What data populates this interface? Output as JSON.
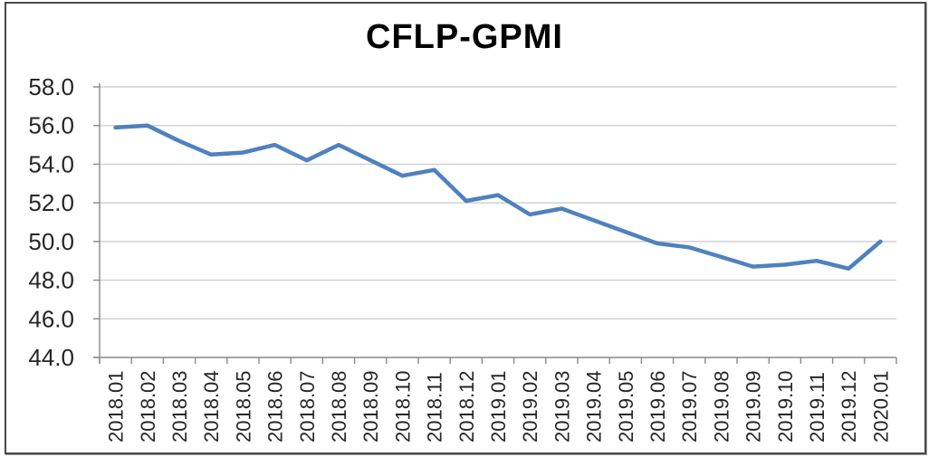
{
  "window": {
    "background": "#ffffff",
    "frame_border_color": "#4a4a4a"
  },
  "chart_data": {
    "type": "line",
    "title": "CFLP-GPMI",
    "categories": [
      "2018.01",
      "2018.02",
      "2018.03",
      "2018.04",
      "2018.05",
      "2018.06",
      "2018.07",
      "2018.08",
      "2018.09",
      "2018.10",
      "2018.11",
      "2018.12",
      "2019.01",
      "2019.02",
      "2019.03",
      "2019.04",
      "2019.05",
      "2019.06",
      "2019.07",
      "2019.08",
      "2019.09",
      "2019.10",
      "2019.11",
      "2019.12",
      "2020.01"
    ],
    "series": [
      {
        "name": "CFLP-GPMI",
        "color": "#4F81BD",
        "values": [
          55.9,
          56.0,
          55.2,
          54.5,
          54.6,
          55.0,
          54.2,
          55.0,
          54.2,
          53.4,
          53.7,
          52.1,
          52.4,
          51.4,
          51.7,
          51.1,
          50.5,
          49.9,
          49.7,
          49.2,
          48.7,
          48.8,
          49.0,
          48.6,
          50.0
        ]
      }
    ],
    "xlabel": "",
    "ylabel": "",
    "ylim": [
      44.0,
      58.0
    ],
    "ytick_step": 2.0,
    "ytick_labels": [
      "58.0",
      "56.0",
      "54.0",
      "52.0",
      "50.0",
      "48.0",
      "46.0",
      "44.0"
    ],
    "x_label_rotation": -90,
    "grid": "horizontal",
    "legend_position": "none",
    "gridline_color": "#c9c9c9",
    "axis_color": "#8a8a8a",
    "tick_label_color": "#262626"
  }
}
